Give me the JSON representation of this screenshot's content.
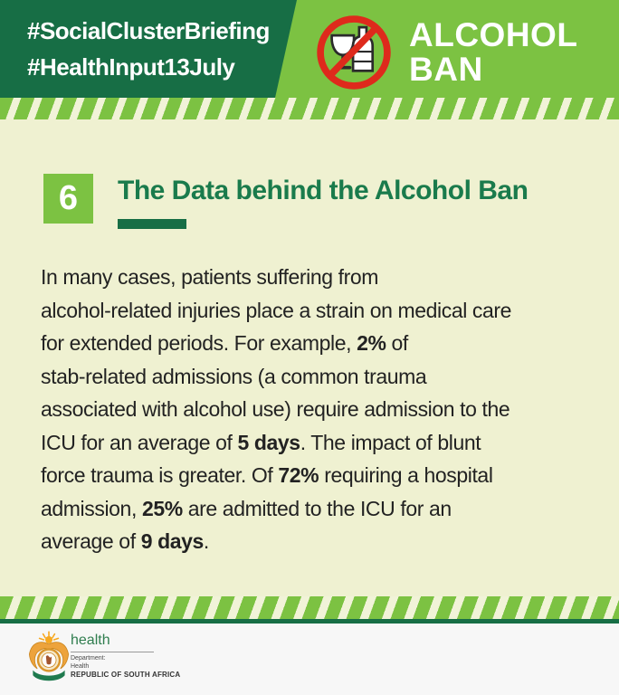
{
  "header": {
    "hashtags": [
      "#SocialClusterBriefing",
      "#HealthInput13July"
    ],
    "ban_line1": "ALCOHOL",
    "ban_line2": "BAN",
    "icon": "no-alcohol-icon"
  },
  "section": {
    "number": "6",
    "title": "The Data behind the Alcohol Ban"
  },
  "paragraph": {
    "segments": [
      {
        "text": "In many cases, patients suffering from\nalcohol-related injuries place a strain on medical care\nfor extended periods. For example, ",
        "bold": false
      },
      {
        "text": "2%",
        "bold": true
      },
      {
        "text": " of\nstab-related admissions (a common trauma\nassociated with alcohol use) require admission to the\nICU for an average of ",
        "bold": false
      },
      {
        "text": "5 days",
        "bold": true
      },
      {
        "text": ". The impact of blunt\nforce trauma is greater. Of ",
        "bold": false
      },
      {
        "text": "72%",
        "bold": true
      },
      {
        "text": " requiring a hospital\nadmission, ",
        "bold": false
      },
      {
        "text": "25%",
        "bold": true
      },
      {
        "text": " are admitted to the ICU for an\naverage of ",
        "bold": false
      },
      {
        "text": "9 days",
        "bold": true
      },
      {
        "text": ".",
        "bold": false
      }
    ]
  },
  "stats": {
    "stab_admissions_icu_pct": "2%",
    "stab_icu_avg_stay": "5 days",
    "blunt_force_hospital_admission_pct": "72%",
    "blunt_force_icu_pct": "25%",
    "blunt_force_icu_avg_stay": "9 days"
  },
  "footer": {
    "logo": "coat-of-arms-icon",
    "org": "health",
    "dept_line1": "Department:",
    "dept_line2": "Health",
    "country": "REPUBLIC OF SOUTH AFRICA"
  },
  "colors": {
    "dark_green": "#176E45",
    "light_green": "#7CC242",
    "cream": "#EFF1D1",
    "stripe_cream": "#F1F3D8",
    "title_green": "#1A7B4C",
    "ban_red": "#DE2A1C",
    "body_text": "#222222",
    "footer_bg": "#F7F7F7"
  }
}
